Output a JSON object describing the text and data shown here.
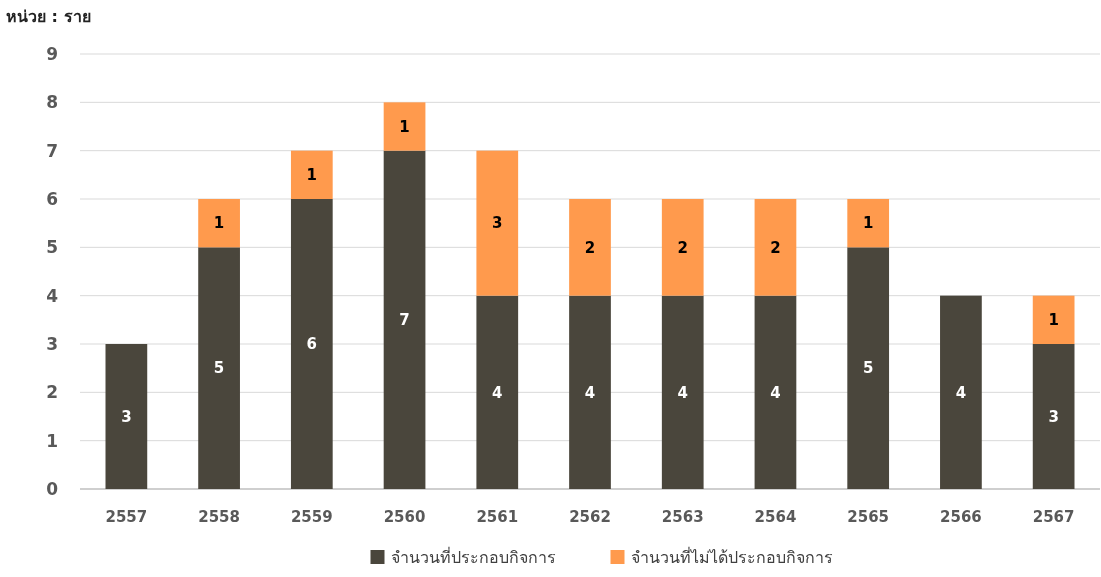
{
  "chart_data": {
    "type": "bar",
    "ylabel": "หน่วย : ราย",
    "categories": [
      "2557",
      "2558",
      "2559",
      "2560",
      "2561",
      "2562",
      "2563",
      "2564",
      "2565",
      "2566",
      "2567"
    ],
    "series": [
      {
        "name": "จำนวนที่ประกอบกิจการ",
        "color": "#4a463c",
        "values": [
          3,
          5,
          6,
          7,
          4,
          4,
          4,
          4,
          5,
          4,
          3
        ]
      },
      {
        "name": "จำนวนที่ไม่ได้ประกอบกิจการ",
        "color": "#ff9a4d",
        "values": [
          null,
          1,
          1,
          1,
          3,
          2,
          2,
          2,
          1,
          null,
          1
        ]
      }
    ],
    "stacked": true,
    "ylim": [
      0,
      9
    ],
    "yticks": [
      0,
      1,
      2,
      3,
      4,
      5,
      6,
      7,
      8,
      9
    ],
    "grid": "y",
    "legend": "bottom",
    "data_labels": true
  }
}
